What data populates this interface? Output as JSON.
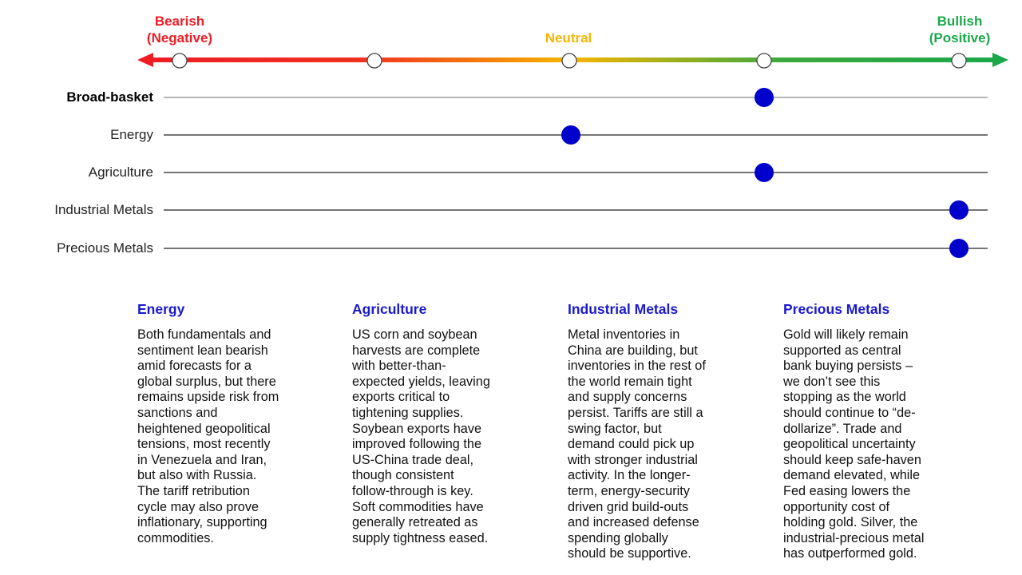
{
  "scale": {
    "bearish_label": [
      "Bearish",
      "(Negative)"
    ],
    "neutral_label": "Neutral",
    "bullish_label": [
      "Bullish",
      "(Positive)"
    ],
    "levels": [
      -2,
      -1,
      0,
      1,
      2
    ],
    "colors": {
      "bearish": "#ee1c25",
      "neutral": "#f7b500",
      "bullish": "#1aa84a",
      "marker": "#0000cc"
    }
  },
  "rows": [
    {
      "label": "Broad-basket",
      "bold": true,
      "level": 1
    },
    {
      "label": "Energy",
      "bold": false,
      "level": 0
    },
    {
      "label": "Agriculture",
      "bold": false,
      "level": 1
    },
    {
      "label": "Industrial Metals",
      "bold": false,
      "level": 2
    },
    {
      "label": "Precious Metals",
      "bold": false,
      "level": 2
    }
  ],
  "columns": [
    {
      "title": "Energy",
      "lines": [
        "Both fundamentals and",
        "sentiment lean bearish",
        "amid forecasts for a",
        "global surplus, but there",
        "remains upside risk from",
        "sanctions and",
        "heightened geopolitical",
        "tensions, most recently",
        "in Venezuela and Iran,",
        "but also with Russia.",
        "The tariff retribution",
        "cycle may also prove",
        "inflationary, supporting",
        "commodities."
      ]
    },
    {
      "title": "Agriculture",
      "lines": [
        "US corn and soybean",
        "harvests are complete",
        "with better-than-",
        "expected yields, leaving",
        "exports critical to",
        "tightening supplies.",
        "Soybean exports have",
        "improved following the",
        "US-China trade deal,",
        "though consistent",
        "follow-through is key.",
        "Soft commodities have",
        "generally retreated as",
        "supply tightness eased."
      ]
    },
    {
      "title": "Industrial Metals",
      "lines": [
        "Metal inventories in",
        "China are building, but",
        "inventories in the rest of",
        "the world remain tight",
        "and supply concerns",
        "persist. Tariffs are still a",
        "swing factor, but",
        "demand could pick up",
        "with stronger industrial",
        "activity. In the longer-",
        "term, energy-security",
        "driven grid build-outs",
        "and increased defense",
        "spending globally",
        "should be supportive."
      ]
    },
    {
      "title": "Precious Metals",
      "lines": [
        "Gold will likely remain",
        "supported as central",
        "bank buying persists –",
        "we don’t see this",
        "stopping as the world",
        "should continue to “de-",
        "dollarize”. Trade and",
        "geopolitical uncertainty",
        "should keep safe-haven",
        "demand elevated, while",
        "Fed easing lowers the",
        "opportunity cost of",
        "holding gold. Silver, the",
        "industrial-precious metal",
        "has outperformed gold."
      ]
    }
  ]
}
